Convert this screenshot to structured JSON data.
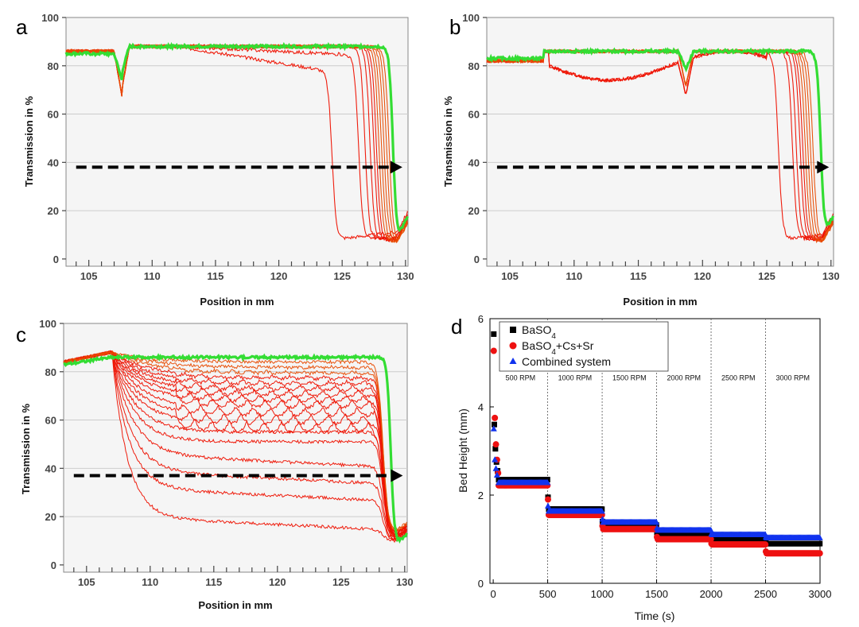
{
  "chart_data": [
    {
      "panel": "a",
      "type": "line",
      "xlabel": "Position in mm",
      "ylabel": "Transmission in %",
      "xlim": [
        103.2,
        130.2
      ],
      "ylim": [
        -3,
        100
      ],
      "xticks": [
        105,
        110,
        115,
        120,
        125,
        130
      ],
      "yticks": [
        0,
        20,
        40,
        60,
        80,
        100
      ],
      "dip": {
        "x": 107.6,
        "depth": 18
      },
      "front_positions": [
        124.2,
        126.3,
        126.8,
        127.2,
        127.5,
        127.7,
        127.9,
        128.1,
        128.3,
        128.5,
        128.7
      ],
      "final_front": 129.0,
      "plateau": 88,
      "bottom": 8,
      "arrow": {
        "x_start": 104,
        "x_end": 129.5,
        "y": 38
      },
      "series_colors": {
        "early": "#ee1100",
        "late": "#e84a00",
        "final": "#33dd33"
      }
    },
    {
      "panel": "b",
      "type": "line",
      "xlabel": "Position in mm",
      "ylabel": "Transmission in %",
      "xlim": [
        103.2,
        130.2
      ],
      "ylim": [
        -3,
        100
      ],
      "xticks": [
        105,
        110,
        115,
        120,
        125,
        130
      ],
      "yticks": [
        0,
        20,
        40,
        60,
        80,
        100
      ],
      "dip": {
        "x": 118.7,
        "depth": 12
      },
      "front_positions": [
        125.9,
        127.0,
        127.3,
        127.6,
        127.8,
        128.0,
        128.2,
        128.4,
        128.6
      ],
      "final_front": 129.2,
      "plateau": 86,
      "bottom": 8,
      "arrow": {
        "x_start": 104,
        "x_end": 129.6,
        "y": 38
      },
      "series_colors": {
        "early": "#ee1100",
        "late": "#e84a00",
        "final": "#33dd33"
      }
    },
    {
      "panel": "c",
      "type": "line",
      "xlabel": "Position in mm",
      "ylabel": "Transmission in %",
      "xlim": [
        103.2,
        130.2
      ],
      "ylim": [
        -3,
        100
      ],
      "xticks": [
        105,
        110,
        115,
        120,
        125,
        130
      ],
      "yticks": [
        0,
        20,
        40,
        60,
        80,
        100
      ],
      "plateau_levels": [
        20,
        32,
        39,
        46,
        51,
        55,
        59,
        62,
        65,
        68,
        70,
        72,
        74,
        76,
        78,
        80,
        82,
        84
      ],
      "front_x": 128.3,
      "final_front": 128.9,
      "plateau": 86,
      "bottom": 10,
      "arrow": {
        "x_start": 104,
        "x_end": 129.6,
        "y": 37
      },
      "series_colors": {
        "early": "#ee1100",
        "late": "#e84a00",
        "final": "#33dd33"
      }
    },
    {
      "panel": "d",
      "type": "scatter",
      "xlabel": "Time (s)",
      "ylabel": "Bed Height (mm)",
      "xlim": [
        -30,
        3000
      ],
      "ylim": [
        0,
        6
      ],
      "xticks": [
        0,
        500,
        1000,
        1500,
        2000,
        2500,
        3000
      ],
      "yticks": [
        0,
        2,
        4,
        6
      ],
      "rpm_boundaries": [
        500,
        1000,
        1500,
        2000,
        2500
      ],
      "rpm_labels": [
        "500 RPM",
        "1000 RPM",
        "1500 RPM",
        "2000 RPM",
        "2500 RPM",
        "3000 RPM"
      ],
      "series": [
        {
          "name": "BaSO4",
          "sub": "4",
          "color": "#000000",
          "marker": "square",
          "initial_points": [
            [
              5,
              5.65
            ],
            [
              10,
              3.6
            ],
            [
              20,
              3.05
            ],
            [
              30,
              2.75
            ],
            [
              40,
              2.55
            ]
          ],
          "steps": [
            [
              500,
              1000,
              1.68
            ],
            [
              1000,
              1500,
              1.32
            ],
            [
              1500,
              2000,
              1.1
            ],
            [
              2000,
              2500,
              0.98
            ],
            [
              2500,
              3000,
              0.9
            ]
          ],
          "first_level": 2.35,
          "transition_points": [
            1.95,
            1.4,
            1.15,
            1.0,
            0.92
          ]
        },
        {
          "name": "BaSO4+Cs+Sr",
          "sub": "4",
          "color": "#ee1111",
          "marker": "circle",
          "initial_points": [
            [
              5,
              5.27
            ],
            [
              15,
              3.75
            ],
            [
              25,
              3.15
            ],
            [
              35,
              2.8
            ],
            [
              45,
              2.5
            ]
          ],
          "steps": [
            [
              500,
              1000,
              1.55
            ],
            [
              1000,
              1500,
              1.23
            ],
            [
              1500,
              2000,
              1.0
            ],
            [
              2000,
              2500,
              0.88
            ],
            [
              2500,
              3000,
              0.68
            ]
          ],
          "first_level": 2.22,
          "transition_points": [
            1.9,
            1.3,
            1.05,
            0.9,
            0.72
          ]
        },
        {
          "name": "Combined system",
          "sub": "",
          "color": "#1133ee",
          "marker": "triangle",
          "initial_points": [
            [
              5,
              3.5
            ],
            [
              15,
              2.8
            ],
            [
              25,
              2.6
            ],
            [
              35,
              2.45
            ]
          ],
          "steps": [
            [
              500,
              1000,
              1.63
            ],
            [
              1000,
              1500,
              1.38
            ],
            [
              1500,
              2000,
              1.2
            ],
            [
              2000,
              2500,
              1.1
            ],
            [
              2500,
              3000,
              1.03
            ]
          ],
          "first_level": 2.28,
          "transition_points": [
            1.75,
            1.45,
            1.25,
            1.12,
            1.05
          ]
        }
      ]
    }
  ]
}
